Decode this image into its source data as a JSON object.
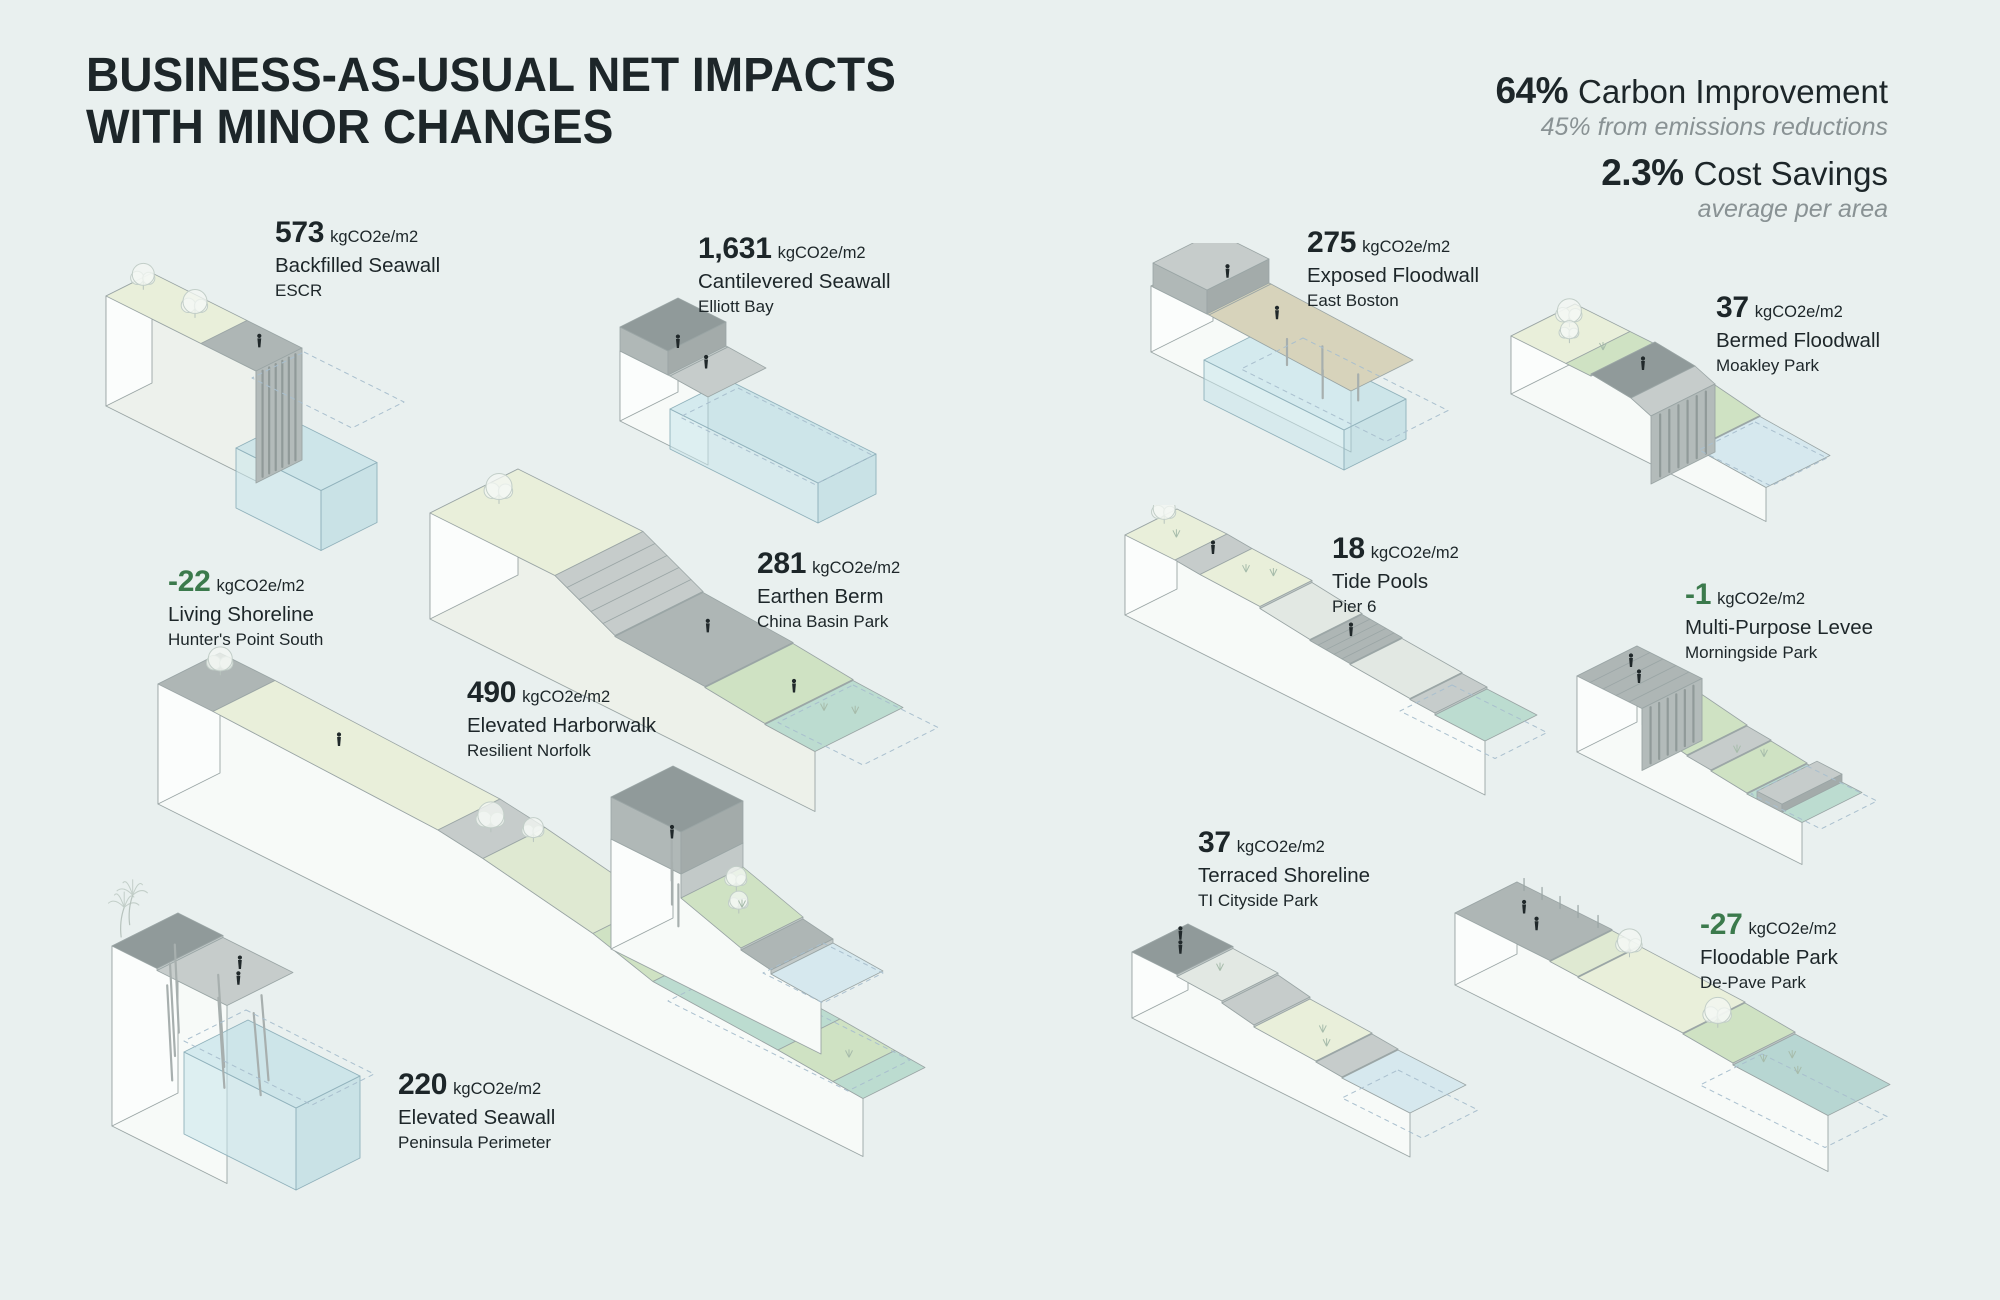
{
  "title": {
    "line1": "BUSINESS-AS-USUAL NET IMPACTS",
    "line2": "WITH MINOR CHANGES"
  },
  "stats": {
    "carbon_value": "64%",
    "carbon_label": "Carbon Improvement",
    "carbon_note": "45% from emissions reductions",
    "cost_value": "2.3%",
    "cost_label": "Cost Savings",
    "cost_note": "average per area"
  },
  "colors": {
    "background": "#e9f0ef",
    "ink": "#1d2629",
    "muted_gray": "#899294",
    "accent_green": "#3b7a4c"
  },
  "items": [
    {
      "id": "backfilled-seawall",
      "value": "573",
      "unit": "kgCO2e/m2",
      "name": "Backfilled Seawall",
      "location": "ESCR"
    },
    {
      "id": "cantilevered-seawall",
      "value": "1,631",
      "unit": "kgCO2e/m2",
      "name": "Cantilevered Seawall",
      "location": "Elliott Bay"
    },
    {
      "id": "living-shoreline",
      "value": "-22",
      "unit": "kgCO2e/m2",
      "name": "Living Shoreline",
      "location": "Hunter's Point South"
    },
    {
      "id": "earthen-berm",
      "value": "281",
      "unit": "kgCO2e/m2",
      "name": "Earthen Berm",
      "location": "China Basin Park"
    },
    {
      "id": "elevated-harborwalk",
      "value": "490",
      "unit": "kgCO2e/m2",
      "name": "Elevated Harborwalk",
      "location": "Resilient Norfolk"
    },
    {
      "id": "elevated-seawall",
      "value": "220",
      "unit": "kgCO2e/m2",
      "name": "Elevated Seawall",
      "location": "Peninsula Perimeter"
    },
    {
      "id": "exposed-floodwall",
      "value": "275",
      "unit": "kgCO2e/m2",
      "name": "Exposed Floodwall",
      "location": "East Boston"
    },
    {
      "id": "bermed-floodwall",
      "value": "37",
      "unit": "kgCO2e/m2",
      "name": "Bermed Floodwall",
      "location": "Moakley Park"
    },
    {
      "id": "tide-pools",
      "value": "18",
      "unit": "kgCO2e/m2",
      "name": "Tide Pools",
      "location": "Pier 6"
    },
    {
      "id": "multi-purpose-levee",
      "value": "-1",
      "unit": "kgCO2e/m2",
      "name": "Multi-Purpose Levee",
      "location": "Morningside Park"
    },
    {
      "id": "terraced-shoreline",
      "value": "37",
      "unit": "kgCO2e/m2",
      "name": "Terraced Shoreline",
      "location": "TI Cityside Park"
    },
    {
      "id": "floodable-park",
      "value": "-27",
      "unit": "kgCO2e/m2",
      "name": "Floodable Park",
      "location": "De-Pave Park"
    }
  ]
}
